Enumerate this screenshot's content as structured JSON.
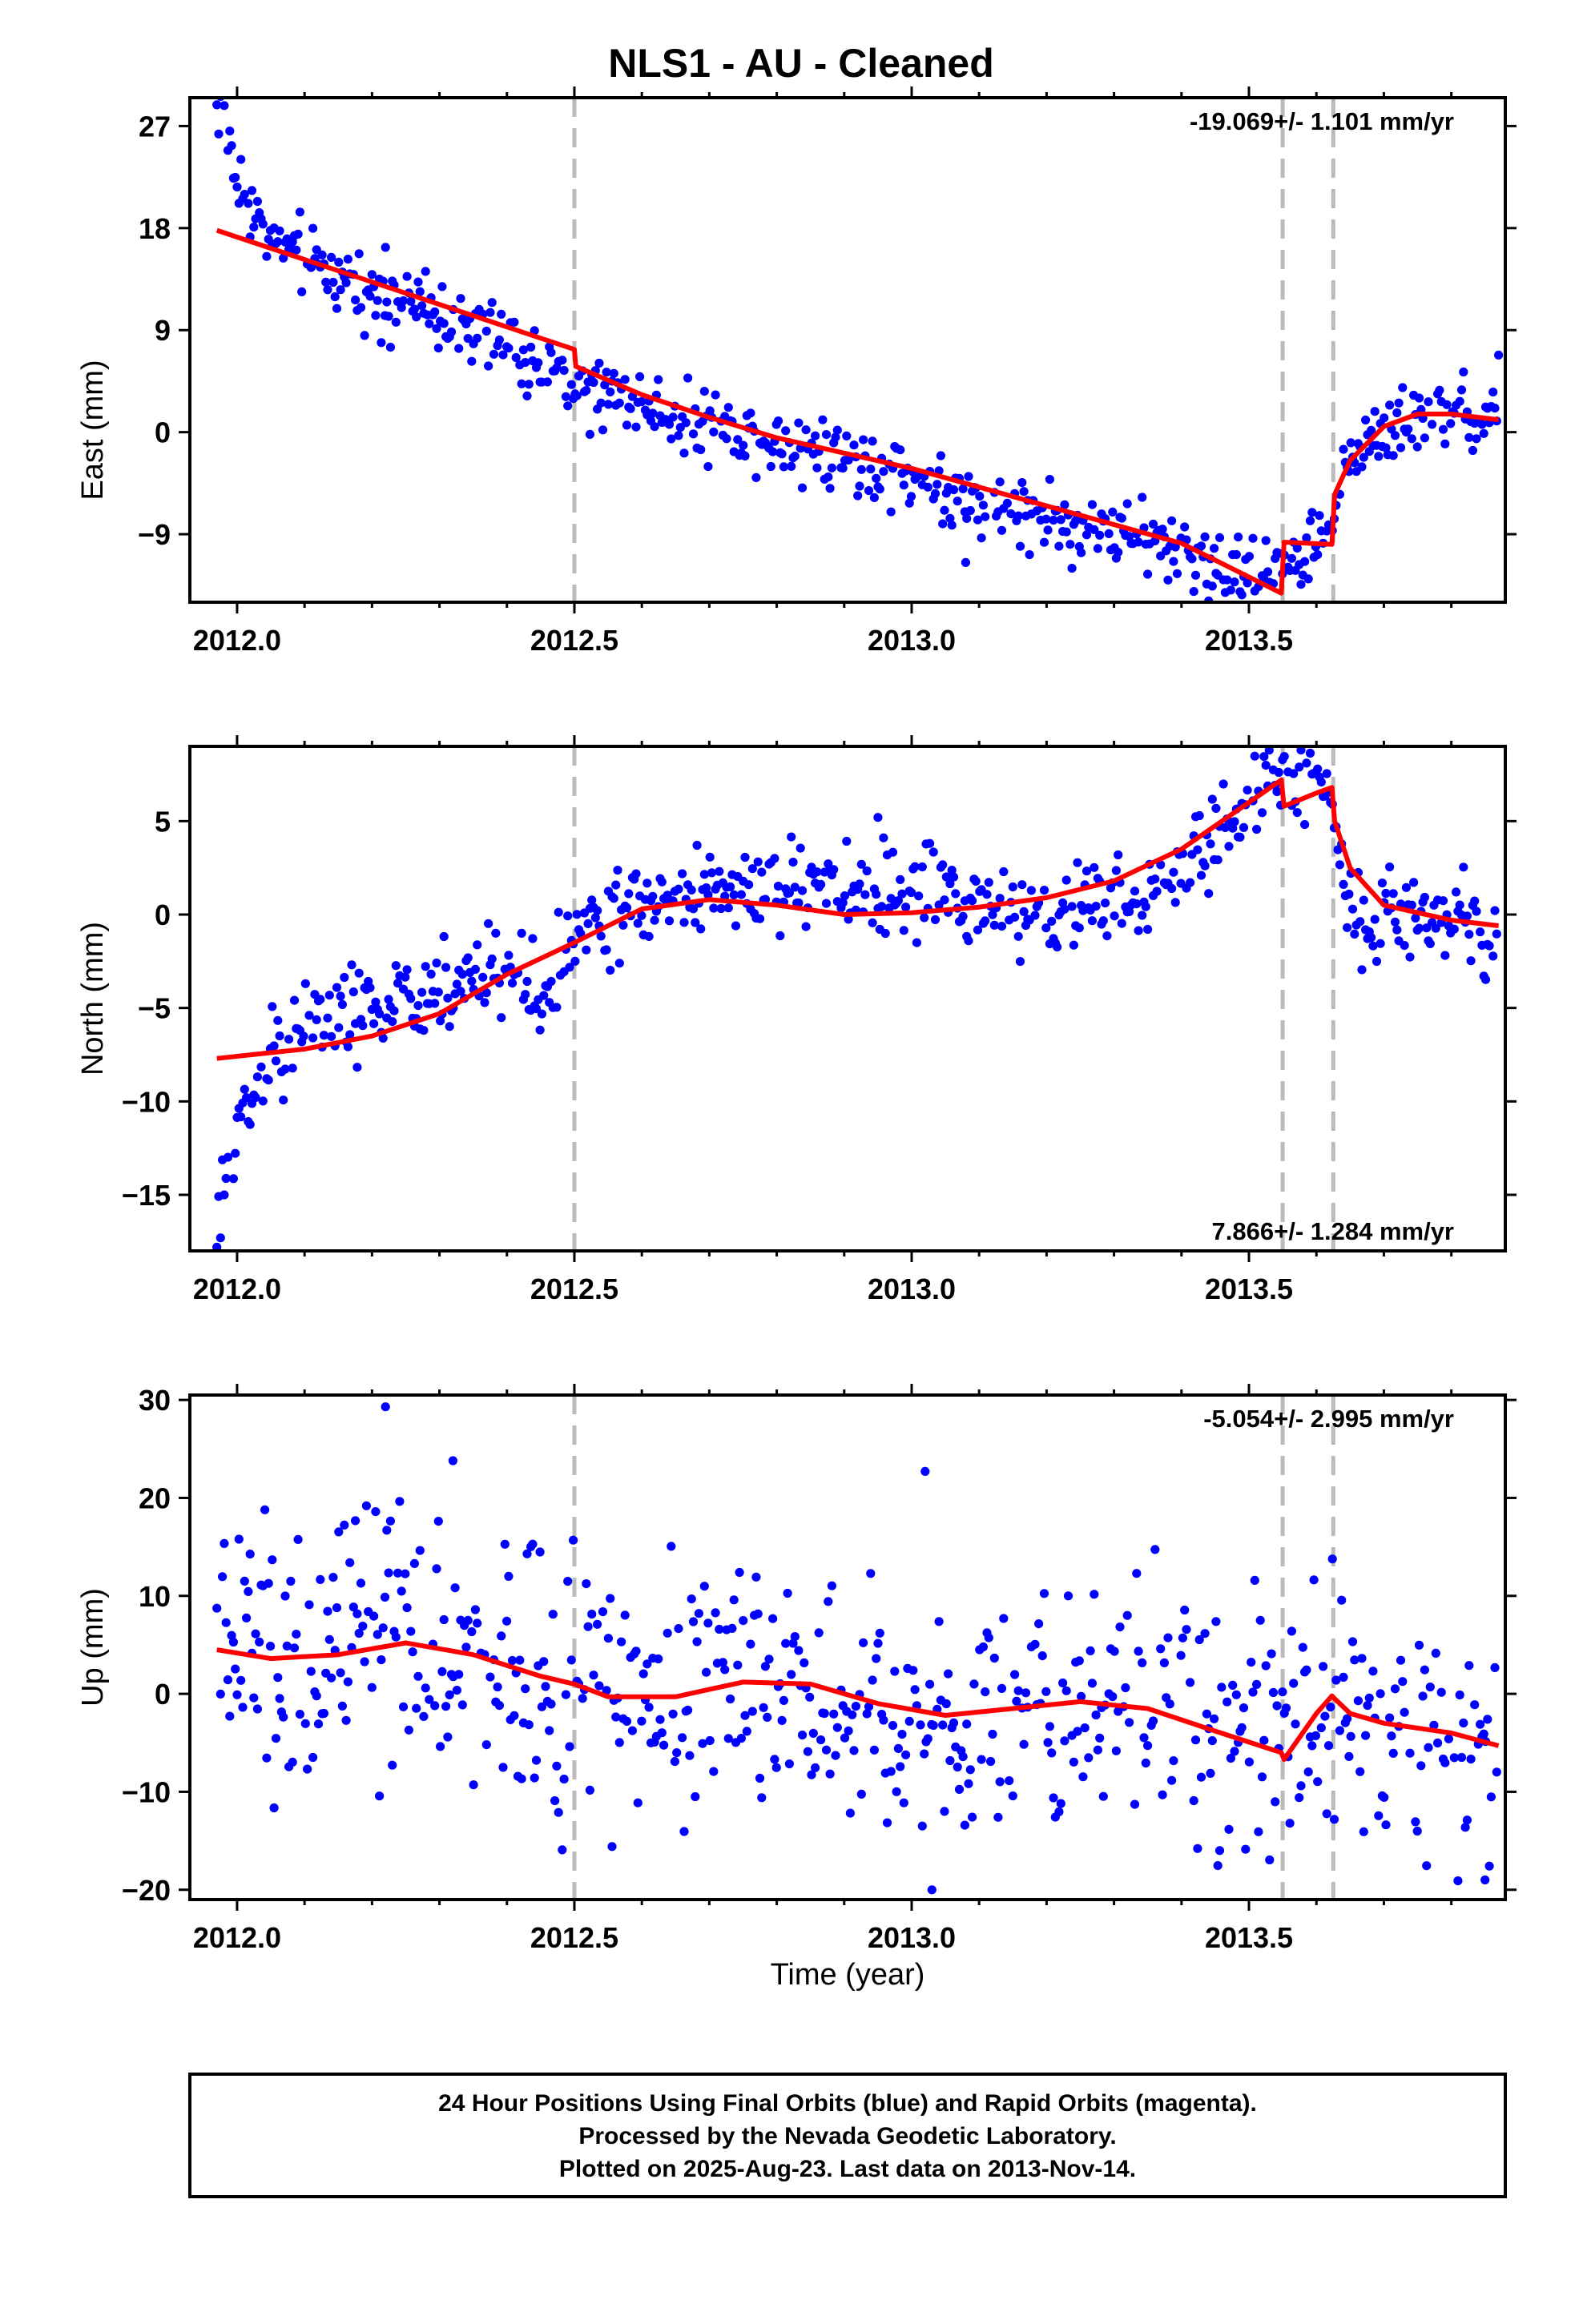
{
  "title": "NLS1  - AU - Cleaned",
  "xlabel": "Time (year)",
  "footer": [
    "24 Hour Positions Using Final Orbits (blue) and Rapid Orbits (magenta).",
    "Processed by the Nevada Geodetic Laboratory.",
    "Plotted on 2025-Aug-23. Last data on 2013-Nov-14."
  ],
  "colors": {
    "data": "#0000ff",
    "model": "#ff0000",
    "offsets": "#bbbbbb",
    "frame": "#000000"
  },
  "chart_data": [
    {
      "type": "scatter",
      "panel": "east",
      "ylabel": "East (mm)",
      "rate_label": "-19.069+/- 1.101 mm/yr",
      "rate_position": "top-right",
      "xlim": [
        2011.93,
        2013.88
      ],
      "ylim": [
        -15,
        29.5
      ],
      "xticks": [
        "2012.0",
        "2012.5",
        "2013.0",
        "2013.5"
      ],
      "yticks": [
        27,
        18,
        9,
        0,
        -9
      ],
      "offset_lines": [
        2012.5,
        2013.55,
        2013.625
      ],
      "data_trend": [
        [
          2011.97,
          29.5
        ],
        [
          2011.98,
          27
        ],
        [
          2012.0,
          22
        ],
        [
          2012.05,
          17
        ],
        [
          2012.1,
          15
        ],
        [
          2012.2,
          12.5
        ],
        [
          2012.3,
          10.5
        ],
        [
          2012.4,
          7.5
        ],
        [
          2012.5,
          4
        ],
        [
          2012.6,
          2.5
        ],
        [
          2012.7,
          0.5
        ],
        [
          2012.8,
          -0.5
        ],
        [
          2012.9,
          -2
        ],
        [
          2013.0,
          -4
        ],
        [
          2013.1,
          -6.5
        ],
        [
          2013.2,
          -7.5
        ],
        [
          2013.3,
          -9
        ],
        [
          2013.4,
          -10.5
        ],
        [
          2013.5,
          -12.5
        ],
        [
          2013.55,
          -12.5
        ],
        [
          2013.6,
          -9.5
        ],
        [
          2013.625,
          -8.5
        ],
        [
          2013.65,
          -2
        ],
        [
          2013.7,
          0.5
        ],
        [
          2013.8,
          2
        ],
        [
          2013.87,
          1.5
        ]
      ],
      "data_spread": 1.6,
      "outliers": [
        [
          2013.87,
          6.8
        ],
        [
          2012.22,
          16.3
        ],
        [
          2013.08,
          -11.5
        ]
      ],
      "model": [
        [
          2011.97,
          17.8
        ],
        [
          2012.5,
          7.3
        ],
        [
          2012.502,
          5.8
        ],
        [
          2012.6,
          3.3
        ],
        [
          2012.7,
          1.3
        ],
        [
          2012.8,
          -0.5
        ],
        [
          2013.0,
          -3.2
        ],
        [
          2013.2,
          -6.5
        ],
        [
          2013.4,
          -9.8
        ],
        [
          2013.548,
          -14.2
        ],
        [
          2013.552,
          -9.7
        ],
        [
          2013.623,
          -9.9
        ],
        [
          2013.627,
          -5.5
        ],
        [
          2013.65,
          -2.5
        ],
        [
          2013.7,
          0.5
        ],
        [
          2013.75,
          1.6
        ],
        [
          2013.8,
          1.6
        ],
        [
          2013.87,
          1.1
        ]
      ]
    },
    {
      "type": "scatter",
      "panel": "north",
      "ylabel": "North (mm)",
      "rate_label": "7.866+/- 1.284 mm/yr",
      "rate_position": "bottom-right",
      "xlim": [
        2011.93,
        2013.88
      ],
      "ylim": [
        -18,
        9
      ],
      "xticks": [
        "2012.0",
        "2012.5",
        "2013.0",
        "2013.5"
      ],
      "yticks": [
        5,
        0,
        -5,
        -10,
        -15
      ],
      "offset_lines": [
        2012.5,
        2013.55,
        2013.625
      ],
      "data_trend": [
        [
          2011.97,
          -17.5
        ],
        [
          2011.98,
          -14.5
        ],
        [
          2012.0,
          -11
        ],
        [
          2012.05,
          -7.5
        ],
        [
          2012.1,
          -6
        ],
        [
          2012.2,
          -5
        ],
        [
          2012.3,
          -4
        ],
        [
          2012.4,
          -3
        ],
        [
          2012.45,
          -4.5
        ],
        [
          2012.5,
          -1
        ],
        [
          2012.6,
          0.5
        ],
        [
          2012.7,
          1.5
        ],
        [
          2012.8,
          1.5
        ],
        [
          2012.9,
          1
        ],
        [
          2013.0,
          1
        ],
        [
          2013.1,
          0.5
        ],
        [
          2013.2,
          0
        ],
        [
          2013.3,
          0.5
        ],
        [
          2013.4,
          2
        ],
        [
          2013.5,
          6
        ],
        [
          2013.55,
          7.5
        ],
        [
          2013.6,
          7.5
        ],
        [
          2013.625,
          6
        ],
        [
          2013.65,
          0
        ],
        [
          2013.7,
          0
        ],
        [
          2013.8,
          0
        ],
        [
          2013.87,
          -1.5
        ]
      ],
      "data_spread": 1.2,
      "outliers": [
        [
          2011.97,
          -17.8
        ],
        [
          2012.95,
          5.2
        ],
        [
          2013.53,
          8.8
        ]
      ],
      "model": [
        [
          2011.97,
          -7.7
        ],
        [
          2012.1,
          -7.2
        ],
        [
          2012.2,
          -6.5
        ],
        [
          2012.3,
          -5.3
        ],
        [
          2012.4,
          -3.2
        ],
        [
          2012.5,
          -1.5
        ],
        [
          2012.6,
          0.3
        ],
        [
          2012.7,
          0.8
        ],
        [
          2012.8,
          0.5
        ],
        [
          2012.9,
          0.0
        ],
        [
          2013.0,
          0.1
        ],
        [
          2013.1,
          0.4
        ],
        [
          2013.2,
          0.9
        ],
        [
          2013.3,
          1.8
        ],
        [
          2013.4,
          3.5
        ],
        [
          2013.5,
          6.0
        ],
        [
          2013.548,
          7.2
        ],
        [
          2013.552,
          5.8
        ],
        [
          2013.6,
          6.5
        ],
        [
          2013.623,
          6.8
        ],
        [
          2013.627,
          5.0
        ],
        [
          2013.65,
          2.5
        ],
        [
          2013.7,
          0.5
        ],
        [
          2013.8,
          -0.3
        ],
        [
          2013.87,
          -0.6
        ]
      ]
    },
    {
      "type": "scatter",
      "panel": "up",
      "ylabel": "Up (mm)",
      "rate_label": "-5.054+/- 2.995 mm/yr",
      "rate_position": "top-right",
      "xlim": [
        2011.93,
        2013.88
      ],
      "ylim": [
        -21,
        30.5
      ],
      "xticks": [
        "2012.0",
        "2012.5",
        "2013.0",
        "2013.5"
      ],
      "yticks": [
        30,
        20,
        10,
        0,
        -10,
        -20
      ],
      "offset_lines": [
        2012.5,
        2013.55,
        2013.625
      ],
      "data_trend": [
        [
          2011.97,
          5
        ],
        [
          2012.1,
          4
        ],
        [
          2012.2,
          5
        ],
        [
          2012.3,
          5
        ],
        [
          2012.4,
          2
        ],
        [
          2012.5,
          1
        ],
        [
          2012.6,
          0
        ],
        [
          2012.7,
          1
        ],
        [
          2012.8,
          1.5
        ],
        [
          2012.9,
          0
        ],
        [
          2013.0,
          -2
        ],
        [
          2013.1,
          -2
        ],
        [
          2013.2,
          -1
        ],
        [
          2013.3,
          -1
        ],
        [
          2013.4,
          -3
        ],
        [
          2013.5,
          -5
        ],
        [
          2013.55,
          -6
        ],
        [
          2013.625,
          0
        ],
        [
          2013.7,
          -3
        ],
        [
          2013.87,
          -5
        ]
      ],
      "data_spread": 6.5,
      "outliers": [
        [
          2012.22,
          29.3
        ],
        [
          2012.32,
          23.8
        ],
        [
          2013.02,
          22.7
        ],
        [
          2013.03,
          -20
        ],
        [
          2013.85,
          -19
        ]
      ],
      "model": [
        [
          2011.97,
          4.5
        ],
        [
          2012.05,
          3.6
        ],
        [
          2012.15,
          4.0
        ],
        [
          2012.25,
          5.2
        ],
        [
          2012.35,
          4.0
        ],
        [
          2012.45,
          1.8
        ],
        [
          2012.5,
          1.0
        ],
        [
          2012.55,
          -0.3
        ],
        [
          2012.65,
          -0.3
        ],
        [
          2012.75,
          1.2
        ],
        [
          2012.85,
          1.0
        ],
        [
          2012.95,
          -1.0
        ],
        [
          2013.05,
          -2.2
        ],
        [
          2013.15,
          -1.5
        ],
        [
          2013.25,
          -0.8
        ],
        [
          2013.35,
          -1.5
        ],
        [
          2013.45,
          -3.8
        ],
        [
          2013.548,
          -6.0
        ],
        [
          2013.552,
          -6.7
        ],
        [
          2013.6,
          -2.0
        ],
        [
          2013.623,
          -0.2
        ],
        [
          2013.627,
          -0.5
        ],
        [
          2013.65,
          -2.0
        ],
        [
          2013.7,
          -3.0
        ],
        [
          2013.8,
          -4.0
        ],
        [
          2013.87,
          -5.3
        ]
      ]
    }
  ]
}
